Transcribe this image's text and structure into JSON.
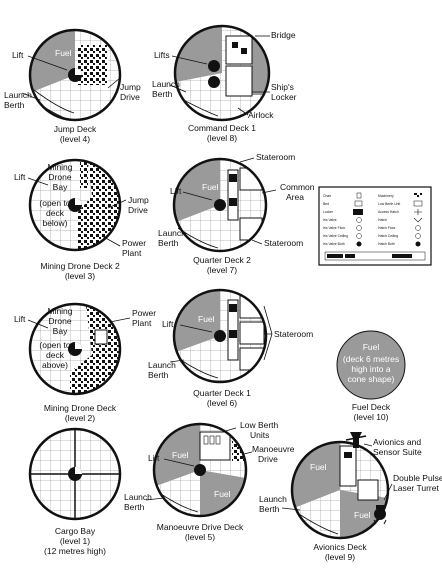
{
  "decks": [
    {
      "id": "jump",
      "title": "Jump Deck",
      "level": "(level 4)",
      "callouts": [
        "Lift",
        "Jump Drive",
        "Launch Berth"
      ],
      "fuel": "Fuel"
    },
    {
      "id": "command",
      "title": "Command Deck 1",
      "level": "(level 8)",
      "callouts": [
        "Lifts",
        "Bridge",
        "Launch Berth",
        "Ship's Locker",
        "Airlock"
      ]
    },
    {
      "id": "mining2",
      "title": "Mining Drone Deck 2",
      "level": "(level 3)",
      "callouts": [
        "Lift",
        "Mining Drone Bay",
        "(open to deck below)",
        "Jump Drive",
        "Power Plant"
      ]
    },
    {
      "id": "quarter2",
      "title": "Quarter Deck 2",
      "level": "(level 7)",
      "callouts": [
        "Stateroom",
        "Common Area",
        "Lift",
        "Launch Berth",
        "Stateroom"
      ],
      "fuel": "Fuel"
    },
    {
      "id": "mining1",
      "title": "Mining Drone Deck",
      "level": "(level 2)",
      "callouts": [
        "Lift",
        "Mining Drone Bay",
        "(open to deck above)",
        "Power Plant"
      ]
    },
    {
      "id": "quarter1",
      "title": "Quarter Deck 1",
      "level": "(level 6)",
      "callouts": [
        "Lift",
        "Stateroom",
        "Launch Berth"
      ],
      "fuel": "Fuel"
    },
    {
      "id": "fueldeck",
      "title": "Fuel Deck",
      "level": "(level 10)",
      "callouts": [],
      "fuel": "Fuel",
      "fuel_note": "(deck 6 metres high into a cone shape)"
    },
    {
      "id": "cargo",
      "title": "Cargo Bay",
      "level": "(level 1)",
      "note": "(12 metres high)",
      "callouts": []
    },
    {
      "id": "manoeuvre",
      "title": "Manoeuvre Drive Deck",
      "level": "(level 5)",
      "callouts": [
        "Low Berth Units",
        "Lift",
        "Manoeuvre Drive",
        "Launch Berth"
      ],
      "fuel": "Fuel"
    },
    {
      "id": "avionics",
      "title": "Avionics Deck",
      "level": "(level 9)",
      "callouts": [
        "Avionics and Sensor Suite",
        "Double Pulse Laser Turret",
        "Launch Berth"
      ],
      "fuel": "Fuel"
    }
  ],
  "legend": {
    "left": [
      "Chair",
      "Bed",
      "Locker",
      "Iris Valve",
      "Iris Valve Floor",
      "Iris Valve Ceiling",
      "Iris Valve Both"
    ],
    "right": [
      "Machinery",
      "Low Berth Unit",
      "Access Hatch",
      "Hatch",
      "Hatch Floor",
      "Hatch Ceiling",
      "Hatch Both"
    ]
  }
}
